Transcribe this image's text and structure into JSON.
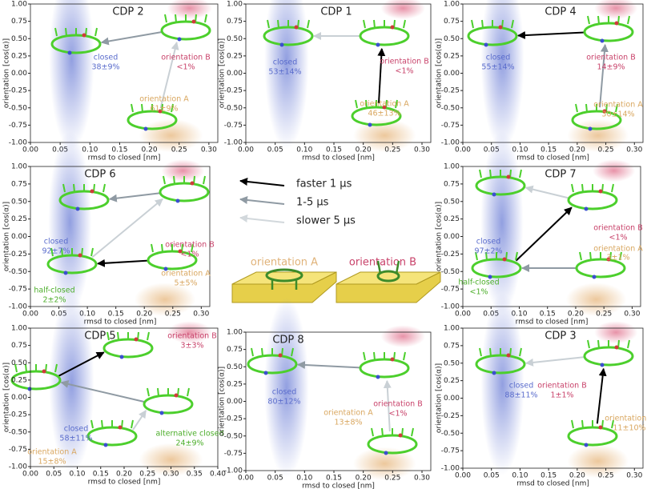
{
  "chart_data": [
    {
      "type": "density",
      "title": "CDP 2",
      "xlabel": "rmsd to closed [nm]",
      "ylabel": "orientation [cos(α)]",
      "xlim": [
        0,
        0.315
      ],
      "ylim": [
        -1,
        1
      ],
      "xticks": [
        {
          "value": 0,
          "label": "0.00"
        },
        {
          "value": 0.05,
          "label": "0.05"
        },
        {
          "value": 0.1,
          "label": "0.10"
        },
        {
          "value": 0.15,
          "label": "0.15"
        },
        {
          "value": 0.2,
          "label": "0.20"
        },
        {
          "value": 0.25,
          "label": "0.25"
        },
        {
          "value": 0.3,
          "label": "0.30"
        }
      ],
      "yticks": [
        {
          "value": -1,
          "label": "-1.00"
        },
        {
          "value": -0.75,
          "label": "-0.75"
        },
        {
          "value": -0.5,
          "label": "-0.50"
        },
        {
          "value": -0.25,
          "label": "-0.25"
        },
        {
          "value": 0,
          "label": "0.00"
        },
        {
          "value": 0.25,
          "label": "0.25"
        },
        {
          "value": 0.5,
          "label": "0.50"
        },
        {
          "value": 0.75,
          "label": "0.75"
        },
        {
          "value": 1,
          "label": "1.00"
        }
      ],
      "annotations": [
        {
          "text": "closed",
          "color": "#5a6ccc"
        },
        {
          "text": "38±9%",
          "color": "#5a6ccc"
        },
        {
          "text": "orientation B",
          "color": "#c8426a"
        },
        {
          "text": "<1%",
          "color": "#c8426a"
        },
        {
          "text": "orientation A",
          "color": "#d9a760"
        },
        {
          "text": "61±9%",
          "color": "#d9a760"
        }
      ]
    },
    {
      "type": "density",
      "title": "CDP 1",
      "xlabel": "rmsd to closed [nm]",
      "ylabel": "orientation [cos(α)]",
      "xlim": [
        0,
        0.315
      ],
      "ylim": [
        -1,
        1
      ],
      "xticks": [
        {
          "value": 0,
          "label": "0.00"
        },
        {
          "value": 0.05,
          "label": "0.05"
        },
        {
          "value": 0.1,
          "label": "0.10"
        },
        {
          "value": 0.15,
          "label": "0.15"
        },
        {
          "value": 0.2,
          "label": "0.20"
        },
        {
          "value": 0.25,
          "label": "0.25"
        },
        {
          "value": 0.3,
          "label": "0.30"
        }
      ],
      "yticks": [
        {
          "value": -1,
          "label": "-1.00"
        },
        {
          "value": -0.75,
          "label": "-0.75"
        },
        {
          "value": -0.5,
          "label": "-0.50"
        },
        {
          "value": -0.25,
          "label": "-0.25"
        },
        {
          "value": 0,
          "label": "0.00"
        },
        {
          "value": 0.25,
          "label": "0.25"
        },
        {
          "value": 0.5,
          "label": "0.50"
        },
        {
          "value": 0.75,
          "label": "0.75"
        },
        {
          "value": 1,
          "label": "1.00"
        }
      ],
      "annotations": [
        {
          "text": "closed",
          "color": "#5a6ccc"
        },
        {
          "text": "53±14%",
          "color": "#5a6ccc"
        },
        {
          "text": "orientation B",
          "color": "#c8426a"
        },
        {
          "text": "<1%",
          "color": "#c8426a"
        },
        {
          "text": "orientation A",
          "color": "#d9a760"
        },
        {
          "text": "46±13%",
          "color": "#d9a760"
        }
      ]
    },
    {
      "type": "density",
      "title": "CDP 4",
      "xlabel": "rmsd to closed [nm]",
      "ylabel": "orientation [cos(α)]",
      "xlim": [
        0,
        0.315
      ],
      "ylim": [
        -1,
        1
      ],
      "xticks": [
        {
          "value": 0,
          "label": "0.00"
        },
        {
          "value": 0.05,
          "label": "0.05"
        },
        {
          "value": 0.1,
          "label": "0.10"
        },
        {
          "value": 0.15,
          "label": "0.15"
        },
        {
          "value": 0.2,
          "label": "0.20"
        },
        {
          "value": 0.25,
          "label": "0.25"
        },
        {
          "value": 0.3,
          "label": "0.30"
        }
      ],
      "yticks": [
        {
          "value": -1,
          "label": "-1.00"
        },
        {
          "value": -0.75,
          "label": "-0.75"
        },
        {
          "value": -0.5,
          "label": "-0.50"
        },
        {
          "value": -0.25,
          "label": "-0.25"
        },
        {
          "value": 0,
          "label": "0.00"
        },
        {
          "value": 0.25,
          "label": "0.25"
        },
        {
          "value": 0.5,
          "label": "0.50"
        },
        {
          "value": 0.75,
          "label": "0.75"
        },
        {
          "value": 1,
          "label": "1.00"
        }
      ],
      "annotations": [
        {
          "text": "closed",
          "color": "#5a6ccc"
        },
        {
          "text": "55±14%",
          "color": "#5a6ccc"
        },
        {
          "text": "orientation B",
          "color": "#c8426a"
        },
        {
          "text": "14±9%",
          "color": "#c8426a"
        },
        {
          "text": "orientation A",
          "color": "#d9a760"
        },
        {
          "text": "30±14%",
          "color": "#d9a760"
        }
      ]
    },
    {
      "type": "density",
      "title": "CDP 6",
      "xlabel": "rmsd to closed [nm]",
      "ylabel": "orientation [cos(α)]",
      "xlim": [
        0,
        0.315
      ],
      "ylim": [
        -1,
        1
      ],
      "xticks": [
        {
          "value": 0,
          "label": "0.00"
        },
        {
          "value": 0.05,
          "label": "0.05"
        },
        {
          "value": 0.1,
          "label": "0.10"
        },
        {
          "value": 0.15,
          "label": "0.15"
        },
        {
          "value": 0.2,
          "label": "0.20"
        },
        {
          "value": 0.25,
          "label": "0.25"
        },
        {
          "value": 0.3,
          "label": "0.30"
        }
      ],
      "yticks": [
        {
          "value": -1,
          "label": "-1.00"
        },
        {
          "value": -0.75,
          "label": "-0.75"
        },
        {
          "value": -0.5,
          "label": "-0.50"
        },
        {
          "value": -0.25,
          "label": "-0.25"
        },
        {
          "value": 0,
          "label": "0.00"
        },
        {
          "value": 0.25,
          "label": "0.25"
        },
        {
          "value": 0.5,
          "label": "0.50"
        },
        {
          "value": 0.75,
          "label": "0.75"
        },
        {
          "value": 1,
          "label": "1.00"
        }
      ],
      "annotations": [
        {
          "text": "closed",
          "color": "#5a6ccc"
        },
        {
          "text": "92±7%",
          "color": "#5a6ccc"
        },
        {
          "text": "orientation B",
          "color": "#c8426a"
        },
        {
          "text": "<1%",
          "color": "#c8426a"
        },
        {
          "text": "orientation A",
          "color": "#d9a760"
        },
        {
          "text": "5±5%",
          "color": "#d9a760"
        },
        {
          "text": "half-closed",
          "color": "#4cae2a"
        },
        {
          "text": "2±2%",
          "color": "#4cae2a"
        }
      ]
    },
    {
      "type": "density",
      "title": "CDP 7",
      "xlabel": "rmsd to closed [nm]",
      "ylabel": "orientation [cos(α)]",
      "xlim": [
        0,
        0.315
      ],
      "ylim": [
        -1,
        1
      ],
      "xticks": [
        {
          "value": 0,
          "label": "0.00"
        },
        {
          "value": 0.05,
          "label": "0.05"
        },
        {
          "value": 0.1,
          "label": "0.10"
        },
        {
          "value": 0.15,
          "label": "0.15"
        },
        {
          "value": 0.2,
          "label": "0.20"
        },
        {
          "value": 0.25,
          "label": "0.25"
        },
        {
          "value": 0.3,
          "label": "0.30"
        }
      ],
      "yticks": [
        {
          "value": -1,
          "label": "-1.00"
        },
        {
          "value": -0.75,
          "label": "-0.75"
        },
        {
          "value": -0.5,
          "label": "-0.50"
        },
        {
          "value": -0.25,
          "label": "-0.25"
        },
        {
          "value": 0,
          "label": "0.00"
        },
        {
          "value": 0.25,
          "label": "0.25"
        },
        {
          "value": 0.5,
          "label": "0.50"
        },
        {
          "value": 0.75,
          "label": "0.75"
        },
        {
          "value": 1,
          "label": "1.00"
        }
      ],
      "annotations": [
        {
          "text": "closed",
          "color": "#5a6ccc"
        },
        {
          "text": "97±2%",
          "color": "#5a6ccc"
        },
        {
          "text": "orientation B",
          "color": "#c8426a"
        },
        {
          "text": "<1%",
          "color": "#c8426a"
        },
        {
          "text": "orientation A",
          "color": "#d9a760"
        },
        {
          "text": "3±1%",
          "color": "#d9a760"
        },
        {
          "text": "half-closed",
          "color": "#4cae2a"
        },
        {
          "text": "<1%",
          "color": "#4cae2a"
        }
      ]
    },
    {
      "type": "density",
      "title": "CDP 5",
      "xlabel": "rmsd to closed [nm]",
      "ylabel": "orientation [cos(α)]",
      "xlim": [
        0,
        0.4
      ],
      "ylim": [
        -1,
        1
      ],
      "xticks": [
        {
          "value": 0,
          "label": "0.00"
        },
        {
          "value": 0.05,
          "label": "0.05"
        },
        {
          "value": 0.1,
          "label": "0.10"
        },
        {
          "value": 0.15,
          "label": "0.15"
        },
        {
          "value": 0.2,
          "label": "0.20"
        },
        {
          "value": 0.25,
          "label": "0.25"
        },
        {
          "value": 0.3,
          "label": "0.30"
        },
        {
          "value": 0.35,
          "label": "0.35"
        },
        {
          "value": 0.4,
          "label": "0.40"
        }
      ],
      "yticks": [
        {
          "value": -1,
          "label": "-1.00"
        },
        {
          "value": -0.75,
          "label": "-0.75"
        },
        {
          "value": -0.5,
          "label": "-0.50"
        },
        {
          "value": -0.25,
          "label": "-0.25"
        },
        {
          "value": 0,
          "label": "0.00"
        },
        {
          "value": 0.25,
          "label": "0.25"
        },
        {
          "value": 0.5,
          "label": "0.50"
        },
        {
          "value": 0.75,
          "label": "0.75"
        },
        {
          "value": 1,
          "label": "1.00"
        }
      ],
      "annotations": [
        {
          "text": "orientation B",
          "color": "#c8426a"
        },
        {
          "text": "3±3%",
          "color": "#c8426a"
        },
        {
          "text": "closed",
          "color": "#5a6ccc"
        },
        {
          "text": "58±11%",
          "color": "#5a6ccc"
        },
        {
          "text": "alternative closed",
          "color": "#4cae2a"
        },
        {
          "text": "24±9%",
          "color": "#4cae2a"
        },
        {
          "text": "orientation A",
          "color": "#d9a760"
        },
        {
          "text": "15±8%",
          "color": "#d9a760"
        }
      ]
    },
    {
      "type": "density",
      "title": "CDP 8",
      "xlabel": "rmsd to closed [nm]",
      "ylabel": "orientation [cos(α)]",
      "xlim": [
        0,
        0.315
      ],
      "ylim": [
        -1,
        1
      ],
      "xticks": [
        {
          "value": 0,
          "label": "0.00"
        },
        {
          "value": 0.05,
          "label": "0.05"
        },
        {
          "value": 0.1,
          "label": "0.10"
        },
        {
          "value": 0.15,
          "label": "0.15"
        },
        {
          "value": 0.2,
          "label": "0.20"
        },
        {
          "value": 0.25,
          "label": "0.25"
        },
        {
          "value": 0.3,
          "label": "0.30"
        }
      ],
      "yticks": [
        {
          "value": -1,
          "label": "-1.00"
        },
        {
          "value": -0.75,
          "label": "-0.75"
        },
        {
          "value": -0.5,
          "label": "-0.50"
        },
        {
          "value": -0.25,
          "label": "-0.25"
        },
        {
          "value": 0,
          "label": "0.00"
        },
        {
          "value": 0.25,
          "label": "0.25"
        },
        {
          "value": 0.5,
          "label": "0.50"
        },
        {
          "value": 0.75,
          "label": "0.75"
        },
        {
          "value": 1,
          "label": "1.00"
        }
      ],
      "annotations": [
        {
          "text": "closed",
          "color": "#5a6ccc"
        },
        {
          "text": "80±12%",
          "color": "#5a6ccc"
        },
        {
          "text": "orientation B",
          "color": "#c8426a"
        },
        {
          "text": "<1%",
          "color": "#c8426a"
        },
        {
          "text": "orientation A",
          "color": "#d9a760"
        },
        {
          "text": "13±8%",
          "color": "#d9a760"
        }
      ]
    },
    {
      "type": "density",
      "title": "CDP 3",
      "xlabel": "rmsd to closed [nm]",
      "ylabel": "orientation [cos(α)]",
      "xlim": [
        0,
        0.315
      ],
      "ylim": [
        -1,
        1
      ],
      "xticks": [
        {
          "value": 0,
          "label": "0.00"
        },
        {
          "value": 0.05,
          "label": "0.05"
        },
        {
          "value": 0.1,
          "label": "0.10"
        },
        {
          "value": 0.15,
          "label": "0.15"
        },
        {
          "value": 0.2,
          "label": "0.20"
        },
        {
          "value": 0.25,
          "label": "0.25"
        },
        {
          "value": 0.3,
          "label": "0.30"
        }
      ],
      "yticks": [
        {
          "value": -1,
          "label": "-1.00"
        },
        {
          "value": -0.75,
          "label": "-0.75"
        },
        {
          "value": -0.5,
          "label": "-0.50"
        },
        {
          "value": -0.25,
          "label": "-0.25"
        },
        {
          "value": 0,
          "label": "0.00"
        },
        {
          "value": 0.25,
          "label": "0.25"
        },
        {
          "value": 0.5,
          "label": "0.50"
        },
        {
          "value": 0.75,
          "label": "0.75"
        },
        {
          "value": 1,
          "label": "1.00"
        }
      ],
      "annotations": [
        {
          "text": "closed",
          "color": "#5a6ccc"
        },
        {
          "text": "88±11%",
          "color": "#5a6ccc"
        },
        {
          "text": "orientation B",
          "color": "#c8426a"
        },
        {
          "text": "1±1%",
          "color": "#c8426a"
        },
        {
          "text": "orientation A",
          "color": "#d9a760"
        },
        {
          "text": "11±10%",
          "color": "#d9a760"
        }
      ]
    }
  ],
  "legend": {
    "arrows": [
      "faster 1 μs",
      "1-5 μs",
      "slower 5 μs"
    ],
    "orientations": [
      "orientation A",
      "orientation B"
    ]
  }
}
